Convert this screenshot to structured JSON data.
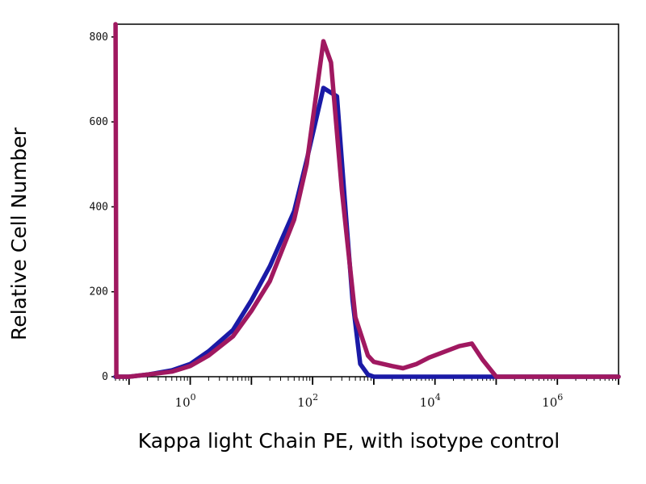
{
  "chart_data": {
    "type": "line",
    "title": "",
    "xlabel": "Kappa light Chain PE, with isotype control",
    "ylabel": "Relative Cell Number",
    "x_scale": "log",
    "xlim": [
      0.06,
      10000000
    ],
    "ylim": [
      0,
      830
    ],
    "yticks": [
      0,
      200,
      400,
      600,
      800
    ],
    "ytick_labels": [
      "0",
      "200",
      "400",
      "600",
      "800"
    ],
    "xticks": [
      {
        "value": 1,
        "base": "10",
        "exp": "0"
      },
      {
        "value": 100,
        "base": "10",
        "exp": "2"
      },
      {
        "value": 10000,
        "base": "10",
        "exp": "4"
      },
      {
        "value": 1000000,
        "base": "10",
        "exp": "6"
      }
    ],
    "grid": false,
    "legend": "none",
    "series": [
      {
        "color": "#1a1aa6",
        "x": [
          0.06,
          0.1,
          0.2,
          0.5,
          1,
          2,
          5,
          10,
          20,
          50,
          80,
          150,
          250,
          350,
          450,
          600,
          800,
          1000,
          1500,
          3000,
          10000,
          100000,
          1000000,
          10000000
        ],
        "y": [
          0,
          0,
          5,
          15,
          30,
          60,
          110,
          180,
          260,
          390,
          510,
          680,
          660,
          380,
          180,
          30,
          5,
          0,
          0,
          0,
          0,
          0,
          0,
          0
        ]
      },
      {
        "color": "#a01860",
        "x": [
          0.06,
          0.0601,
          0.062,
          0.065,
          0.1,
          0.2,
          0.5,
          1,
          2,
          5,
          10,
          20,
          50,
          80,
          150,
          200,
          300,
          500,
          800,
          1000,
          2000,
          3000,
          5000,
          8000,
          15000,
          25000,
          40000,
          60000,
          100000,
          150000,
          1000000,
          10000000
        ],
        "y": [
          830,
          830,
          0,
          0,
          0,
          5,
          12,
          25,
          50,
          95,
          155,
          225,
          370,
          500,
          790,
          740,
          440,
          140,
          50,
          35,
          25,
          20,
          30,
          45,
          60,
          72,
          78,
          40,
          0,
          0,
          0,
          0
        ]
      }
    ]
  }
}
